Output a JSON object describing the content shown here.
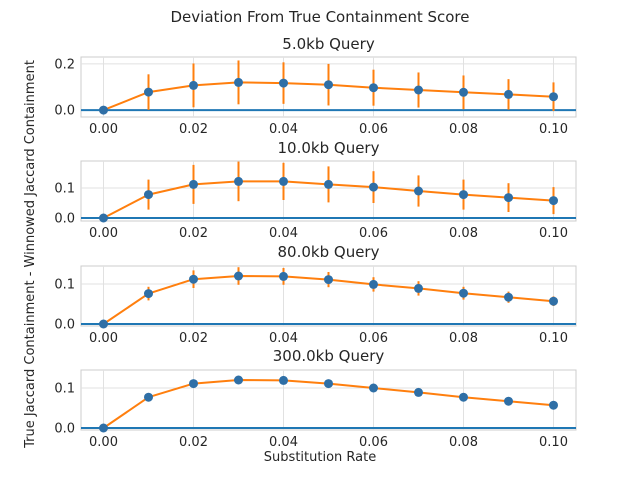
{
  "figure": {
    "suptitle": "Deviation From True Containment Score",
    "xlabel": "Substitution Rate",
    "ylabel": "True Jaccard Containment - Winnowed Jaccard Containment",
    "colors": {
      "baseline": "#1f77b4",
      "line": "#ff7f0e",
      "marker": "#2f6fa6",
      "errorbar": "#ff7f0e"
    }
  },
  "chart_data": [
    {
      "type": "line",
      "title": "5.0kb Query",
      "x": [
        0.0,
        0.01,
        0.02,
        0.03,
        0.04,
        0.05,
        0.06,
        0.07,
        0.08,
        0.09,
        0.1
      ],
      "xticks": [
        "0.00",
        "0.02",
        "0.04",
        "0.06",
        "0.08",
        "0.10"
      ],
      "yticks": [
        "0.0",
        "0.2"
      ],
      "ylim": [
        -0.03,
        0.23
      ],
      "series": [
        {
          "values": [
            0.0,
            0.078,
            0.107,
            0.12,
            0.117,
            0.11,
            0.097,
            0.087,
            0.077,
            0.068,
            0.058
          ],
          "yerr": [
            0.0,
            0.077,
            0.095,
            0.095,
            0.09,
            0.09,
            0.078,
            0.076,
            0.073,
            0.066,
            0.062
          ]
        }
      ],
      "baseline": 0,
      "grid": true
    },
    {
      "type": "line",
      "title": "10.0kb Query",
      "x": [
        0.0,
        0.01,
        0.02,
        0.03,
        0.04,
        0.05,
        0.06,
        0.07,
        0.08,
        0.09,
        0.1
      ],
      "xticks": [
        "0.00",
        "0.02",
        "0.04",
        "0.06",
        "0.08",
        "0.10"
      ],
      "yticks": [
        "0.0",
        "0.1"
      ],
      "ylim": [
        -0.01,
        0.19
      ],
      "series": [
        {
          "values": [
            0.0,
            0.078,
            0.112,
            0.122,
            0.122,
            0.112,
            0.103,
            0.09,
            0.078,
            0.068,
            0.058
          ],
          "yerr": [
            0.0,
            0.05,
            0.065,
            0.066,
            0.062,
            0.06,
            0.053,
            0.052,
            0.05,
            0.048,
            0.045
          ]
        }
      ],
      "baseline": 0,
      "grid": true
    },
    {
      "type": "line",
      "title": "80.0kb Query",
      "x": [
        0.0,
        0.01,
        0.02,
        0.03,
        0.04,
        0.05,
        0.06,
        0.07,
        0.08,
        0.09,
        0.1
      ],
      "xticks": [
        "0.00",
        "0.02",
        "0.04",
        "0.06",
        "0.08",
        "0.10"
      ],
      "yticks": [
        "0.0",
        "0.1"
      ],
      "ylim": [
        -0.005,
        0.145
      ],
      "series": [
        {
          "values": [
            0.0,
            0.076,
            0.112,
            0.12,
            0.119,
            0.111,
            0.099,
            0.089,
            0.077,
            0.067,
            0.057
          ],
          "yerr": [
            0.0,
            0.017,
            0.022,
            0.022,
            0.021,
            0.019,
            0.018,
            0.018,
            0.016,
            0.014,
            0.012
          ]
        }
      ],
      "baseline": 0,
      "grid": true
    },
    {
      "type": "line",
      "title": "300.0kb Query",
      "x": [
        0.0,
        0.01,
        0.02,
        0.03,
        0.04,
        0.05,
        0.06,
        0.07,
        0.08,
        0.09,
        0.1
      ],
      "xticks": [
        "0.00",
        "0.02",
        "0.04",
        "0.06",
        "0.08",
        "0.10"
      ],
      "yticks": [
        "0.0",
        "0.1"
      ],
      "ylim": [
        -0.005,
        0.145
      ],
      "series": [
        {
          "values": [
            0.0,
            0.077,
            0.111,
            0.12,
            0.119,
            0.111,
            0.1,
            0.089,
            0.077,
            0.067,
            0.057
          ],
          "yerr": [
            0.0,
            0.005,
            0.006,
            0.006,
            0.006,
            0.005,
            0.005,
            0.005,
            0.005,
            0.004,
            0.004
          ]
        }
      ],
      "baseline": 0,
      "grid": true
    }
  ]
}
